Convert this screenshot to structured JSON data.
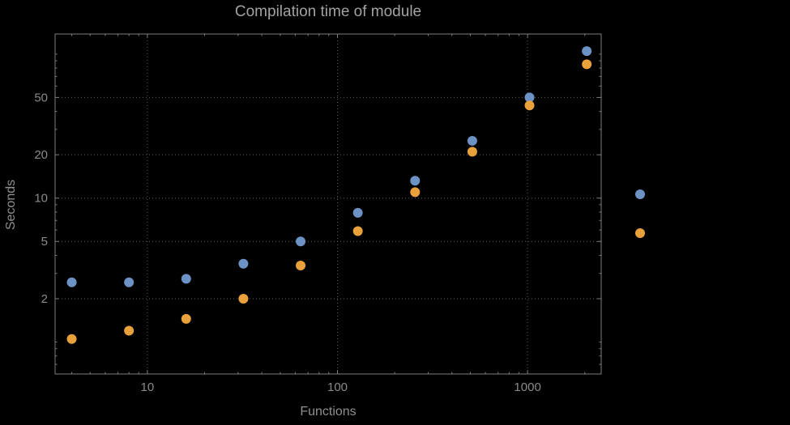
{
  "chart_data": {
    "type": "scatter",
    "title": "Compilation time of module",
    "xlabel": "Functions",
    "ylabel": "Seconds",
    "x_scale": "log",
    "y_scale": "log",
    "x": [
      4,
      8,
      16,
      32,
      64,
      128,
      256,
      512,
      1024,
      2048
    ],
    "series": [
      {
        "name": "series-1-blue",
        "color": "#6d92c5",
        "values": [
          2.6,
          2.6,
          2.75,
          3.5,
          5.0,
          7.9,
          13.2,
          25,
          50,
          105
        ]
      },
      {
        "name": "series-2-orange",
        "color": "#e9a13c",
        "values": [
          1.05,
          1.2,
          1.45,
          2.0,
          3.4,
          5.9,
          11,
          21,
          44,
          85
        ]
      }
    ],
    "axes": {
      "x": {
        "min": 3.27,
        "max": 2440,
        "ticks": [
          10,
          100,
          1000
        ],
        "tick_labels": [
          "10",
          "100",
          "1000"
        ]
      },
      "y": {
        "min": 0.6,
        "max": 138,
        "ticks": [
          2,
          5,
          10,
          20,
          50
        ],
        "tick_labels": [
          "2",
          "5",
          "10",
          "20",
          "50"
        ]
      }
    },
    "grid": "dotted",
    "legend": {
      "position": "right-outside",
      "entries": [
        {
          "color": "#6d92c5",
          "label": ""
        },
        {
          "color": "#e9a13c",
          "label": ""
        }
      ]
    },
    "marker": {
      "shape": "circle",
      "radius": 6
    }
  },
  "colors": {
    "background": "#000000",
    "frame": "#7d7d7d",
    "grid": "#5e5e5e",
    "tick_label": "#8a8a8a",
    "title": "#a2a2a2",
    "axis_label": "#8f8f8f"
  }
}
